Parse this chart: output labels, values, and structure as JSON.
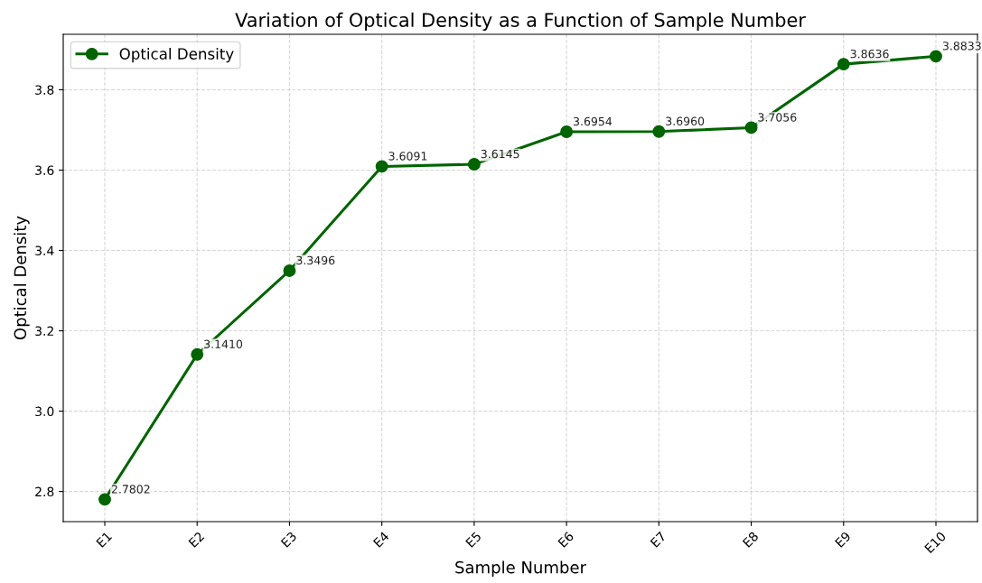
{
  "chart_data": {
    "type": "line",
    "title": "Variation of Optical Density as a Function of Sample Number",
    "xlabel": "Sample Number",
    "ylabel": "Optical Density",
    "categories": [
      "E1",
      "E2",
      "E3",
      "E4",
      "E5",
      "E6",
      "E7",
      "E8",
      "E9",
      "E10"
    ],
    "series": [
      {
        "name": "Optical Density",
        "color": "#006400",
        "values": [
          2.7802,
          3.141,
          3.3496,
          3.6091,
          3.6145,
          3.6954,
          3.696,
          3.7056,
          3.8636,
          3.8833
        ],
        "value_labels": [
          "2.7802",
          "3.1410",
          "3.3496",
          "3.6091",
          "3.6145",
          "3.6954",
          "3.6960",
          "3.7056",
          "3.8636",
          "3.8833"
        ]
      }
    ],
    "ylim": [
      2.725,
      3.938
    ],
    "yticks": [
      2.8,
      {
        "value": 3.0,
        "label": "3.0"
      },
      3.2,
      3.4,
      3.6,
      3.8
    ],
    "grid": true,
    "legend": "top left",
    "marker": "circle",
    "line_style": "solid"
  }
}
